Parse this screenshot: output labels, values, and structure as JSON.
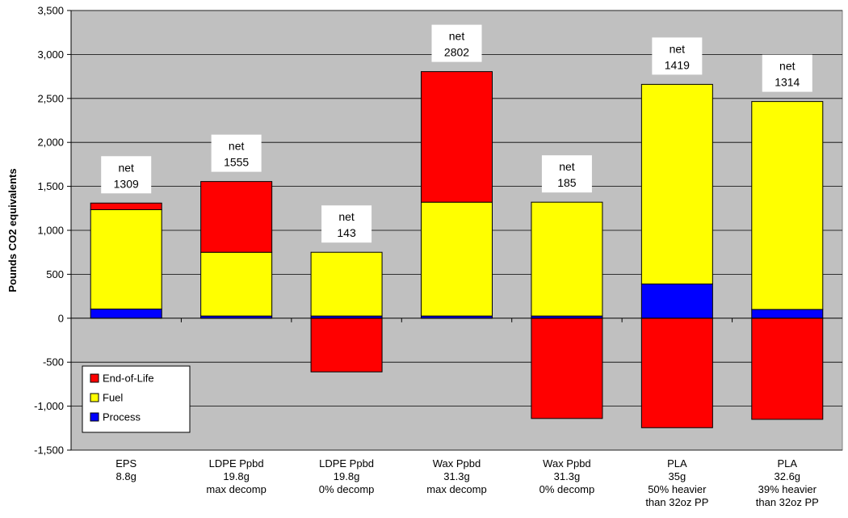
{
  "chart_data": {
    "type": "bar",
    "stacked": true,
    "ylabel": "Pounds CO2 equivalents",
    "ylim": [
      -1500,
      3500
    ],
    "ytick_step": 500,
    "ytick_labels": [
      "-1,500",
      "-1,000",
      "-500",
      "0",
      "500",
      "1,000",
      "1,500",
      "2,000",
      "2,500",
      "3,000",
      "3,500"
    ],
    "grid": true,
    "plot_background": "#c0c0c0",
    "legend_position": "bottom-left",
    "categories": [
      [
        "EPS",
        "8.8g"
      ],
      [
        "LDPE Ppbd",
        "19.8g",
        "max decomp"
      ],
      [
        "LDPE Ppbd",
        "19.8g",
        "0% decomp"
      ],
      [
        "Wax Ppbd",
        "31.3g",
        "max decomp"
      ],
      [
        "Wax Ppbd",
        "31.3g",
        "0% decomp"
      ],
      [
        "PLA",
        "35g",
        "50% heavier",
        "than 32oz PP"
      ],
      [
        "PLA",
        "32.6g",
        "39% heavier",
        "than 32oz PP"
      ]
    ],
    "series": [
      {
        "name": "Process",
        "color": "#0000ff",
        "values": [
          105,
          25,
          25,
          25,
          25,
          390,
          100
        ]
      },
      {
        "name": "Fuel",
        "color": "#ffff00",
        "values": [
          1130,
          725,
          725,
          1295,
          1295,
          2270,
          2365
        ]
      },
      {
        "name": "End-of-Life",
        "color": "#ff0000",
        "values": [
          75,
          805,
          -610,
          1485,
          -1140,
          -1245,
          -1150
        ]
      }
    ],
    "legend_order": [
      "End-of-Life",
      "Fuel",
      "Process"
    ],
    "annotations": [
      {
        "label": "net",
        "value": "1309"
      },
      {
        "label": "net",
        "value": "1555"
      },
      {
        "label": "net",
        "value": "143"
      },
      {
        "label": "net",
        "value": "2802"
      },
      {
        "label": "net",
        "value": "185"
      },
      {
        "label": "net",
        "value": "1419"
      },
      {
        "label": "net",
        "value": "1314"
      }
    ]
  }
}
